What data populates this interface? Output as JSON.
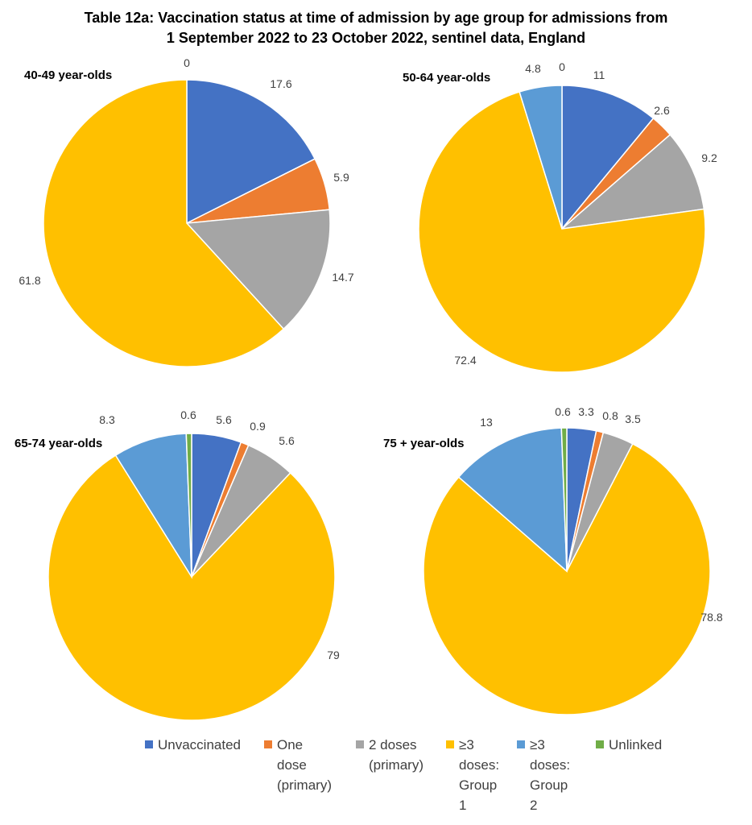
{
  "title": {
    "line1": "Table 12a: Vaccination status at time of admission by age group for admissions from",
    "line2": "1 September 2022 to 23 October 2022, sentinel data, England"
  },
  "colors": {
    "Unvaccinated": "#4472C4",
    "One dose (primary)": "#ED7D31",
    "2 doses (primary)": "#A5A5A5",
    "≥3 doses: Group 1": "#FFC000",
    "≥3 doses: Group 2": "#5B9BD5",
    "Unlinked": "#70AD47"
  },
  "legend": [
    {
      "key": "Unvaccinated",
      "lines": [
        "Unvaccinated"
      ]
    },
    {
      "key": "One dose (primary)",
      "lines": [
        "One",
        "dose",
        "(primary)"
      ]
    },
    {
      "key": "2 doses (primary)",
      "lines": [
        "2 doses",
        "(primary)"
      ]
    },
    {
      "key": "≥3 doses: Group 1",
      "lines": [
        "≥3",
        "doses:",
        "Group",
        "1"
      ]
    },
    {
      "key": "≥3 doses: Group 2",
      "lines": [
        "≥3",
        "doses:",
        "Group",
        "2"
      ]
    },
    {
      "key": "Unlinked",
      "lines": [
        "Unlinked"
      ]
    }
  ],
  "chart_data": [
    {
      "type": "pie",
      "title": "40-49 year-olds",
      "categories": [
        "Unvaccinated",
        "One dose (primary)",
        "2 doses (primary)",
        "≥3 doses: Group 1",
        "≥3 doses: Group 2",
        "Unlinked"
      ],
      "values": [
        17.6,
        5.9,
        14.7,
        61.8,
        0,
        0
      ],
      "labels": [
        "17.6",
        "5.9",
        "14.7",
        "61.8",
        "",
        "0"
      ]
    },
    {
      "type": "pie",
      "title": "50-64 year-olds",
      "categories": [
        "Unvaccinated",
        "One dose (primary)",
        "2 doses (primary)",
        "≥3 doses: Group 1",
        "≥3 doses: Group 2",
        "Unlinked"
      ],
      "values": [
        11,
        2.6,
        9.2,
        72.4,
        4.8,
        0
      ],
      "labels": [
        "11",
        "2.6",
        "9.2",
        "72.4",
        "4.8",
        "0"
      ]
    },
    {
      "type": "pie",
      "title": "65-74 year-olds",
      "categories": [
        "Unvaccinated",
        "One dose (primary)",
        "2 doses (primary)",
        "≥3 doses: Group 1",
        "≥3 doses: Group 2",
        "Unlinked"
      ],
      "values": [
        5.6,
        0.9,
        5.6,
        79,
        8.3,
        0.6
      ],
      "labels": [
        "5.6",
        "0.9",
        "5.6",
        "79",
        "8.3",
        "0.6"
      ]
    },
    {
      "type": "pie",
      "title": "75 + year-olds",
      "categories": [
        "Unvaccinated",
        "One dose (primary)",
        "2 doses (primary)",
        "≥3 doses: Group 1",
        "≥3 doses: Group 2",
        "Unlinked"
      ],
      "values": [
        3.3,
        0.8,
        3.5,
        78.8,
        13,
        0.6
      ],
      "labels": [
        "3.3",
        "0.8",
        "3.5",
        "78.8",
        "13",
        "0.6"
      ]
    }
  ]
}
